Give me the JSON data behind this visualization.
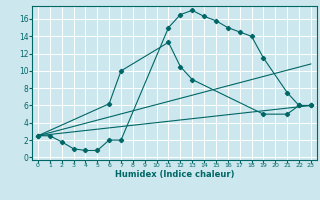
{
  "xlabel": "Humidex (Indice chaleur)",
  "bg_color": "#cce8ee",
  "grid_color": "#ffffff",
  "line_color": "#006666",
  "xlim": [
    -0.5,
    23.5
  ],
  "ylim": [
    -0.3,
    17.5
  ],
  "xticks": [
    0,
    1,
    2,
    3,
    4,
    5,
    6,
    7,
    8,
    9,
    10,
    11,
    12,
    13,
    14,
    15,
    16,
    17,
    18,
    19,
    20,
    21,
    22,
    23
  ],
  "yticks": [
    0,
    2,
    4,
    6,
    8,
    10,
    12,
    14,
    16
  ],
  "series": [
    {
      "x": [
        0,
        1,
        2,
        3,
        4,
        5,
        6,
        7,
        11,
        12,
        13,
        14,
        15,
        16,
        17,
        18,
        19,
        21,
        22,
        23
      ],
      "y": [
        2.5,
        2.5,
        1.8,
        1.0,
        0.8,
        0.8,
        2.0,
        2.0,
        15.0,
        16.5,
        17.0,
        16.3,
        15.8,
        15.0,
        14.5,
        14.0,
        11.5,
        7.5,
        6.0,
        6.0
      ],
      "marker": "D",
      "markersize": 2.2
    },
    {
      "x": [
        0,
        6,
        7,
        11,
        12,
        13,
        19,
        21,
        22,
        23
      ],
      "y": [
        2.5,
        6.2,
        10.0,
        13.3,
        10.5,
        9.0,
        5.0,
        5.0,
        6.0,
        6.0
      ],
      "marker": "D",
      "markersize": 2.2
    },
    {
      "x": [
        0,
        23
      ],
      "y": [
        2.5,
        10.8
      ],
      "marker": null,
      "markersize": 0
    },
    {
      "x": [
        0,
        23
      ],
      "y": [
        2.5,
        6.0
      ],
      "marker": null,
      "markersize": 0
    }
  ]
}
